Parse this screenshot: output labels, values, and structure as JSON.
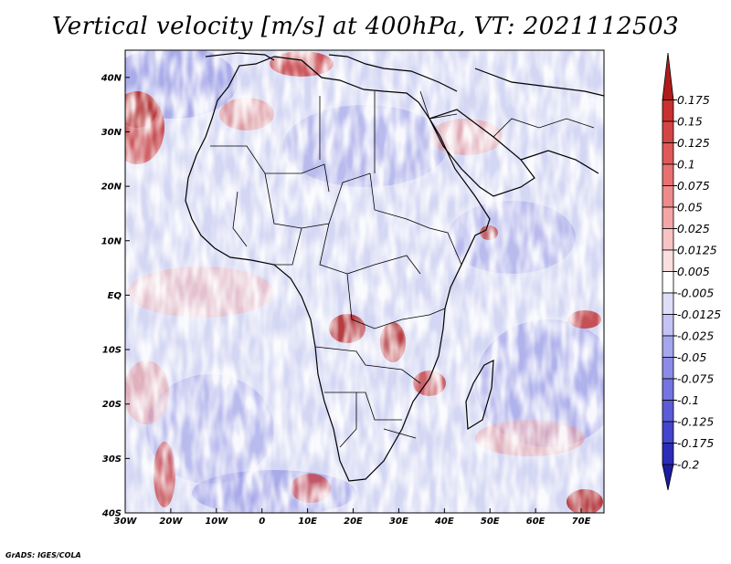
{
  "title": "Vertical velocity [m/s] at 400hPa, VT: 2021112503",
  "credit": "GrADS: IGES/COLA",
  "map": {
    "lon_range": [
      -30,
      75
    ],
    "lat_range": [
      -40,
      45
    ],
    "lon_ticks": [
      {
        "value": -30,
        "label": "30W"
      },
      {
        "value": -20,
        "label": "20W"
      },
      {
        "value": -10,
        "label": "10W"
      },
      {
        "value": 0,
        "label": "0"
      },
      {
        "value": 10,
        "label": "10E"
      },
      {
        "value": 20,
        "label": "20E"
      },
      {
        "value": 30,
        "label": "30E"
      },
      {
        "value": 40,
        "label": "40E"
      },
      {
        "value": 50,
        "label": "50E"
      },
      {
        "value": 60,
        "label": "60E"
      },
      {
        "value": 70,
        "label": "70E"
      }
    ],
    "lat_ticks": [
      {
        "value": 40,
        "label": "40N"
      },
      {
        "value": 30,
        "label": "30N"
      },
      {
        "value": 20,
        "label": "20N"
      },
      {
        "value": 10,
        "label": "10N"
      },
      {
        "value": 0,
        "label": "EQ"
      },
      {
        "value": -10,
        "label": "10S"
      },
      {
        "value": -20,
        "label": "20S"
      },
      {
        "value": -30,
        "label": "30S"
      },
      {
        "value": -40,
        "label": "40S"
      }
    ],
    "colors": {
      "background": "#d6d9f3",
      "boundary": "#000000"
    }
  },
  "colorbar": {
    "boundary_labels": [
      "0.175",
      "0.15",
      "0.125",
      "0.1",
      "0.075",
      "0.05",
      "0.025",
      "0.0125",
      "0.005",
      "-0.005",
      "-0.0125",
      "-0.025",
      "-0.05",
      "-0.075",
      "-0.1",
      "-0.125",
      "-0.175",
      "-0.2"
    ],
    "colors": [
      "#b01c1c",
      "#c93030",
      "#d54444",
      "#e05858",
      "#e87070",
      "#ef8a8a",
      "#f4a6a6",
      "#f8c3c3",
      "#fbdede",
      "#ffffff",
      "#dedef8",
      "#c3c3f4",
      "#a6a6ee",
      "#8c8ce8",
      "#7474e2",
      "#5c5cd8",
      "#4444cc",
      "#2c2cb8",
      "#1c1ca0"
    ]
  }
}
